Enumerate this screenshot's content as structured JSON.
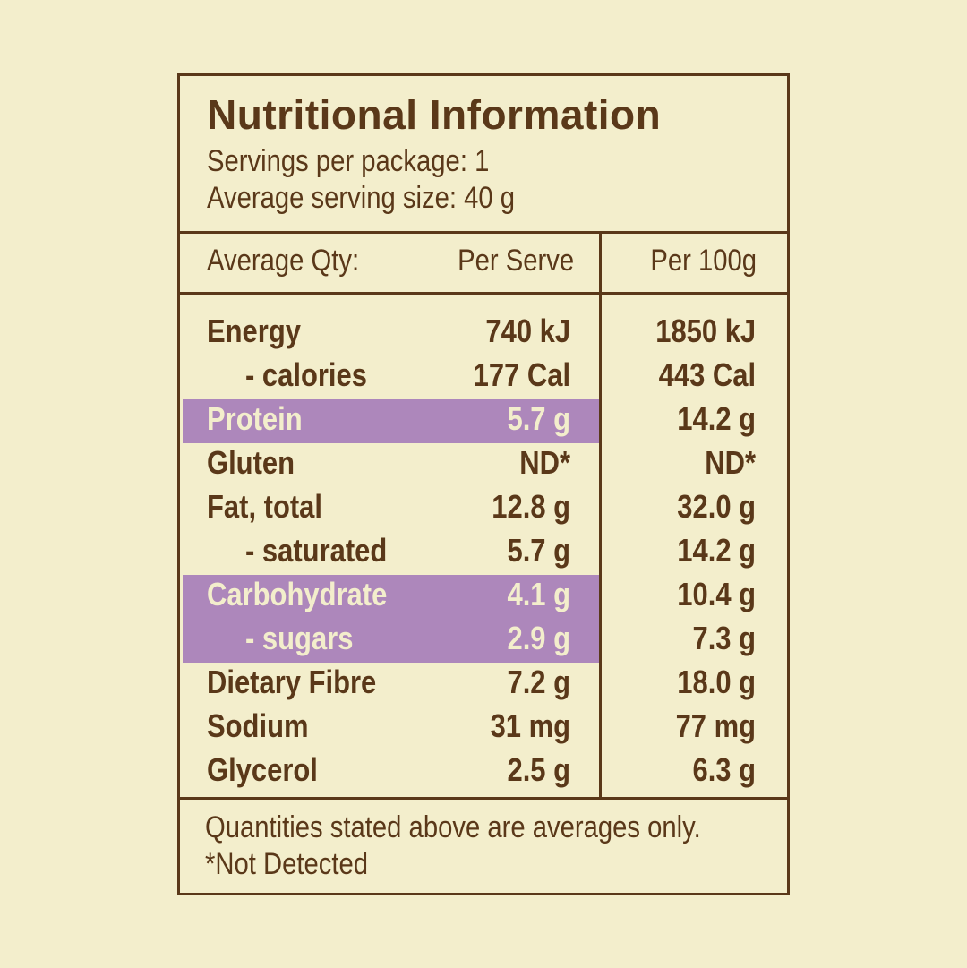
{
  "panel": {
    "title": "Nutritional Information",
    "servings": "Servings per package: 1",
    "serving_size": "Average serving size: 40 g"
  },
  "columns": {
    "label": "Average Qty:",
    "per_serve": "Per Serve",
    "per_100g": "Per 100g"
  },
  "rows": [
    {
      "label": "Energy",
      "per_serve": "740 kJ",
      "per_100g": "1850 kJ",
      "indent": false,
      "highlight": false
    },
    {
      "label": "- calories",
      "per_serve": "177 Cal",
      "per_100g": "443 Cal",
      "indent": true,
      "highlight": false
    },
    {
      "label": "Protein",
      "per_serve": "5.7 g",
      "per_100g": "14.2 g",
      "indent": false,
      "highlight": true
    },
    {
      "label": "Gluten",
      "per_serve": "ND*",
      "per_100g": "ND*",
      "indent": false,
      "highlight": false
    },
    {
      "label": "Fat, total",
      "per_serve": "12.8 g",
      "per_100g": "32.0 g",
      "indent": false,
      "highlight": false
    },
    {
      "label": "- saturated",
      "per_serve": "5.7 g",
      "per_100g": "14.2 g",
      "indent": true,
      "highlight": false
    },
    {
      "label": "Carbohydrate",
      "per_serve": "4.1 g",
      "per_100g": "10.4 g",
      "indent": false,
      "highlight": true
    },
    {
      "label": "- sugars",
      "per_serve": "2.9 g",
      "per_100g": "7.3 g",
      "indent": true,
      "highlight": true
    },
    {
      "label": "Dietary Fibre",
      "per_serve": "7.2 g",
      "per_100g": "18.0 g",
      "indent": false,
      "highlight": false
    },
    {
      "label": "Sodium",
      "per_serve": "31 mg",
      "per_100g": "77 mg",
      "indent": false,
      "highlight": false
    },
    {
      "label": "Glycerol",
      "per_serve": "2.5 g",
      "per_100g": "6.3 g",
      "indent": false,
      "highlight": false
    }
  ],
  "footer": {
    "note": "Quantities stated above are averages only.",
    "footnote": "*Not Detected"
  },
  "colors": {
    "background": "#f3eecc",
    "text": "#5a3819",
    "highlight": "#ad87bb"
  }
}
